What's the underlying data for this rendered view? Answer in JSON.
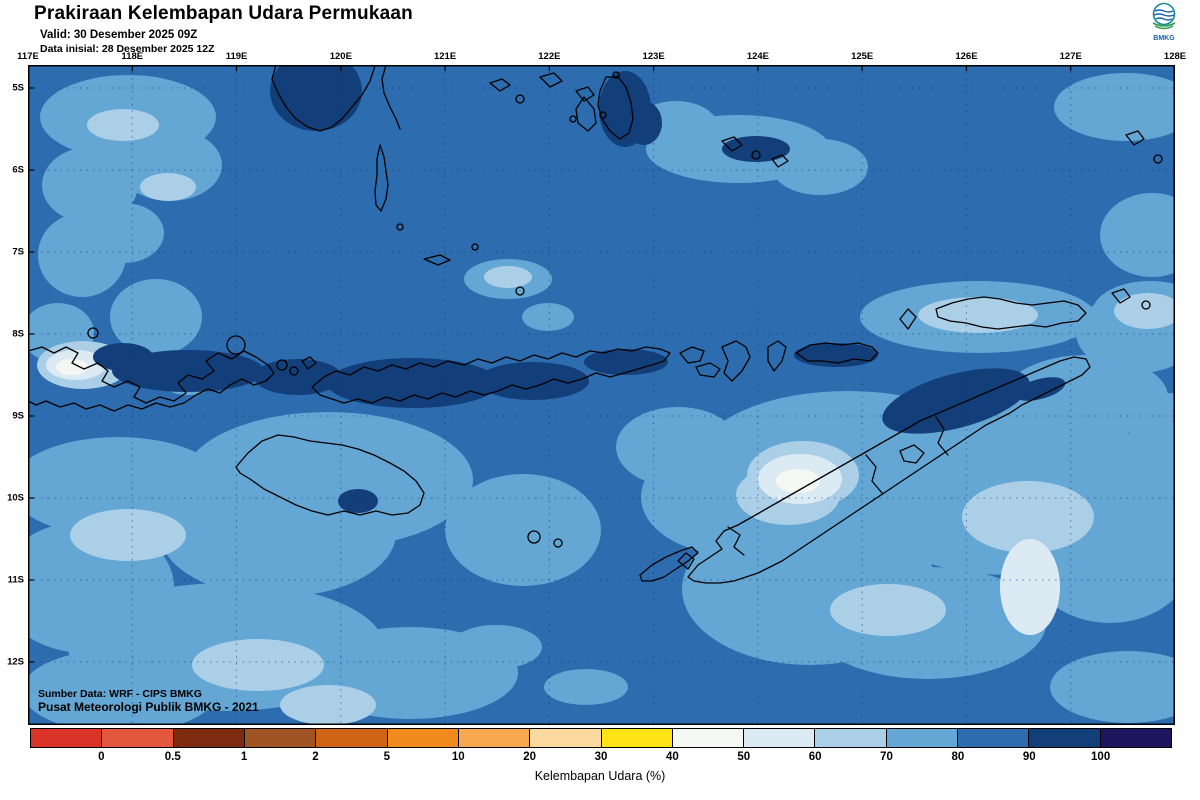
{
  "header": {
    "title": "Prakiraan Kelembapan Udara Permukaan",
    "valid": "Valid: 30 Desember 2025 09Z",
    "initial": "Data inisial: 28 Desember 2025 12Z",
    "logo_text": "BMKG"
  },
  "map": {
    "lon_labels": [
      "117E",
      "118E",
      "119E",
      "120E",
      "121E",
      "122E",
      "123E",
      "124E",
      "125E",
      "126E",
      "127E",
      "128E"
    ],
    "lat_labels": [
      "5S",
      "6S",
      "7S",
      "8S",
      "9S",
      "10S",
      "11S",
      "12S"
    ],
    "source_line1": "Sumber Data: WRF - CIPS BMKG",
    "source_line2": "Pusat Meteorologi Publik BMKG -  2021"
  },
  "palette": {
    "rh40": "#f5f8f2",
    "rh50": "#dceaf4",
    "rh60": "#abcfe7",
    "rh70": "#64a6d4",
    "rh80": "#2d6cae",
    "rh90": "#123e7a",
    "coast": "#000000"
  },
  "colorbar": {
    "segment_colors": [
      "#da3327",
      "#e2573e",
      "#7e2a10",
      "#a05323",
      "#cf6417",
      "#f08a1d",
      "#f8a94f",
      "#fbd99f",
      "#ffe315",
      "#f5f8f2",
      "#dceaf4",
      "#abcfe7",
      "#64a6d4",
      "#2d6cae",
      "#123e7a",
      "#1e155f"
    ],
    "tick_labels": [
      "0",
      "0.5",
      "1",
      "2",
      "5",
      "10",
      "20",
      "30",
      "40",
      "50",
      "60",
      "70",
      "80",
      "90",
      "100"
    ],
    "caption": "Kelembapan Udara (%)"
  }
}
